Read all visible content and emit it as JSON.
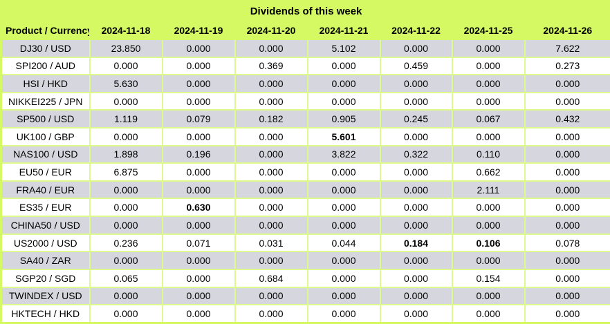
{
  "title": "Dividends of this week",
  "columns": [
    "Product / Currency",
    "2024-11-18",
    "2024-11-19",
    "2024-11-20",
    "2024-11-21",
    "2024-11-22",
    "2024-11-25",
    "2024-11-26"
  ],
  "rows": [
    {
      "product": "DJ30 / USD",
      "values": [
        "23.850",
        "0.000",
        "0.000",
        "5.102",
        "0.000",
        "0.000",
        "7.622"
      ],
      "bold": []
    },
    {
      "product": "SPI200 / AUD",
      "values": [
        "0.000",
        "0.000",
        "0.369",
        "0.000",
        "0.459",
        "0.000",
        "0.273"
      ],
      "bold": []
    },
    {
      "product": "HSI / HKD",
      "values": [
        "5.630",
        "0.000",
        "0.000",
        "0.000",
        "0.000",
        "0.000",
        "0.000"
      ],
      "bold": []
    },
    {
      "product": "NIKKEI225 / JPN",
      "values": [
        "0.000",
        "0.000",
        "0.000",
        "0.000",
        "0.000",
        "0.000",
        "0.000"
      ],
      "bold": []
    },
    {
      "product": "SP500 / USD",
      "values": [
        "1.119",
        "0.079",
        "0.182",
        "0.905",
        "0.245",
        "0.067",
        "0.432"
      ],
      "bold": []
    },
    {
      "product": "UK100 / GBP",
      "values": [
        "0.000",
        "0.000",
        "0.000",
        "5.601",
        "0.000",
        "0.000",
        "0.000"
      ],
      "bold": [
        3
      ]
    },
    {
      "product": "NAS100 / USD",
      "values": [
        "1.898",
        "0.196",
        "0.000",
        "3.822",
        "0.322",
        "0.110",
        "0.000"
      ],
      "bold": []
    },
    {
      "product": "EU50 / EUR",
      "values": [
        "6.875",
        "0.000",
        "0.000",
        "0.000",
        "0.000",
        "0.662",
        "0.000"
      ],
      "bold": []
    },
    {
      "product": "FRA40 / EUR",
      "values": [
        "0.000",
        "0.000",
        "0.000",
        "0.000",
        "0.000",
        "2.111",
        "0.000"
      ],
      "bold": []
    },
    {
      "product": "ES35 / EUR",
      "values": [
        "0.000",
        "0.630",
        "0.000",
        "0.000",
        "0.000",
        "0.000",
        "0.000"
      ],
      "bold": [
        1
      ]
    },
    {
      "product": "CHINA50 / USD",
      "values": [
        "0.000",
        "0.000",
        "0.000",
        "0.000",
        "0.000",
        "0.000",
        "0.000"
      ],
      "bold": []
    },
    {
      "product": "US2000 / USD",
      "values": [
        "0.236",
        "0.071",
        "0.031",
        "0.044",
        "0.184",
        "0.106",
        "0.078"
      ],
      "bold": [
        4,
        5
      ]
    },
    {
      "product": "SA40 / ZAR",
      "values": [
        "0.000",
        "0.000",
        "0.000",
        "0.000",
        "0.000",
        "0.000",
        "0.000"
      ],
      "bold": []
    },
    {
      "product": "SGP20 / SGD",
      "values": [
        "0.065",
        "0.000",
        "0.684",
        "0.000",
        "0.000",
        "0.154",
        "0.000"
      ],
      "bold": []
    },
    {
      "product": "TWINDEX / USD",
      "values": [
        "0.000",
        "0.000",
        "0.000",
        "0.000",
        "0.000",
        "0.000",
        "0.000"
      ],
      "bold": []
    },
    {
      "product": "HKTECH / HKD",
      "values": [
        "0.000",
        "0.000",
        "0.000",
        "0.000",
        "0.000",
        "0.000",
        "0.000"
      ],
      "bold": []
    }
  ],
  "colors": {
    "header_background": "#D4F963",
    "grid_border": "#DFFA8C",
    "striped_row_background": "#D6D6DE",
    "plain_row_background": "#FFFFFF",
    "text": "#000000"
  }
}
